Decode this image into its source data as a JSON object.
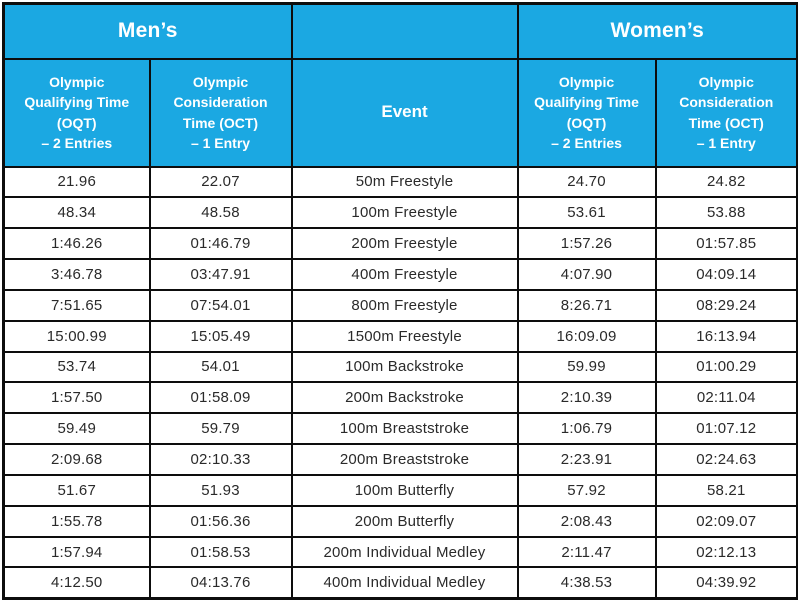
{
  "colors": {
    "header_blue": "#1BA8E2",
    "border": "#0d0d0d",
    "header_text": "#FFFFFF",
    "cell_text": "#2a2a2a"
  },
  "table": {
    "group_headers": {
      "mens": "Men’s",
      "womens": "Women’s"
    },
    "sub_headers": {
      "oqt_lines": "Olympic\nQualifying Time\n(OQT)\n– 2 Entries",
      "oct_lines": "Olympic\nConsideration\nTime (OCT)\n– 1 Entry",
      "event": "Event"
    },
    "rows": [
      {
        "event": "50m Freestyle",
        "m_oqt": "21.96",
        "m_oct": "22.07",
        "w_oqt": "24.70",
        "w_oct": "24.82"
      },
      {
        "event": "100m Freestyle",
        "m_oqt": "48.34",
        "m_oct": "48.58",
        "w_oqt": "53.61",
        "w_oct": "53.88"
      },
      {
        "event": "200m Freestyle",
        "m_oqt": "1:46.26",
        "m_oct": "01:46.79",
        "w_oqt": "1:57.26",
        "w_oct": "01:57.85"
      },
      {
        "event": "400m Freestyle",
        "m_oqt": "3:46.78",
        "m_oct": "03:47.91",
        "w_oqt": "4:07.90",
        "w_oct": "04:09.14"
      },
      {
        "event": "800m Freestyle",
        "m_oqt": "7:51.65",
        "m_oct": "07:54.01",
        "w_oqt": "8:26.71",
        "w_oct": "08:29.24"
      },
      {
        "event": "1500m Freestyle",
        "m_oqt": "15:00.99",
        "m_oct": "15:05.49",
        "w_oqt": "16:09.09",
        "w_oct": "16:13.94"
      },
      {
        "event": "100m Backstroke",
        "m_oqt": "53.74",
        "m_oct": "54.01",
        "w_oqt": "59.99",
        "w_oct": "01:00.29"
      },
      {
        "event": "200m Backstroke",
        "m_oqt": "1:57.50",
        "m_oct": "01:58.09",
        "w_oqt": "2:10.39",
        "w_oct": "02:11.04"
      },
      {
        "event": "100m Breaststroke",
        "m_oqt": "59.49",
        "m_oct": "59.79",
        "w_oqt": "1:06.79",
        "w_oct": "01:07.12"
      },
      {
        "event": "200m Breaststroke",
        "m_oqt": "2:09.68",
        "m_oct": "02:10.33",
        "w_oqt": "2:23.91",
        "w_oct": "02:24.63"
      },
      {
        "event": "100m Butterfly",
        "m_oqt": "51.67",
        "m_oct": "51.93",
        "w_oqt": "57.92",
        "w_oct": "58.21"
      },
      {
        "event": "200m Butterfly",
        "m_oqt": "1:55.78",
        "m_oct": "01:56.36",
        "w_oqt": "2:08.43",
        "w_oct": "02:09.07"
      },
      {
        "event": "200m Individual Medley",
        "m_oqt": "1:57.94",
        "m_oct": "01:58.53",
        "w_oqt": "2:11.47",
        "w_oct": "02:12.13"
      },
      {
        "event": "400m Individual Medley",
        "m_oqt": "4:12.50",
        "m_oct": "04:13.76",
        "w_oqt": "4:38.53",
        "w_oct": "04:39.92"
      }
    ]
  },
  "chart_data": {
    "type": "table",
    "title": "Olympic swimming qualifying standards",
    "column_groups": [
      "Men’s",
      "",
      "Women’s"
    ],
    "columns": [
      "Olympic Qualifying Time (OQT) – 2 Entries (Men)",
      "Olympic Consideration Time (OCT) – 1 Entry (Men)",
      "Event",
      "Olympic Qualifying Time (OQT) – 2 Entries (Women)",
      "Olympic Consideration Time (OCT) – 1 Entry (Women)"
    ],
    "rows": [
      [
        "21.96",
        "22.07",
        "50m Freestyle",
        "24.70",
        "24.82"
      ],
      [
        "48.34",
        "48.58",
        "100m Freestyle",
        "53.61",
        "53.88"
      ],
      [
        "1:46.26",
        "01:46.79",
        "200m Freestyle",
        "1:57.26",
        "01:57.85"
      ],
      [
        "3:46.78",
        "03:47.91",
        "400m Freestyle",
        "4:07.90",
        "04:09.14"
      ],
      [
        "7:51.65",
        "07:54.01",
        "800m Freestyle",
        "8:26.71",
        "08:29.24"
      ],
      [
        "15:00.99",
        "15:05.49",
        "1500m Freestyle",
        "16:09.09",
        "16:13.94"
      ],
      [
        "53.74",
        "54.01",
        "100m Backstroke",
        "59.99",
        "01:00.29"
      ],
      [
        "1:57.50",
        "01:58.09",
        "200m Backstroke",
        "2:10.39",
        "02:11.04"
      ],
      [
        "59.49",
        "59.79",
        "100m Breaststroke",
        "1:06.79",
        "01:07.12"
      ],
      [
        "2:09.68",
        "02:10.33",
        "200m Breaststroke",
        "2:23.91",
        "02:24.63"
      ],
      [
        "51.67",
        "51.93",
        "100m Butterfly",
        "57.92",
        "58.21"
      ],
      [
        "1:55.78",
        "01:56.36",
        "200m Butterfly",
        "2:08.43",
        "02:09.07"
      ],
      [
        "1:57.94",
        "01:58.53",
        "200m Individual Medley",
        "2:11.47",
        "02:12.13"
      ],
      [
        "4:12.50",
        "04:13.76",
        "400m Individual Medley",
        "4:38.53",
        "04:39.92"
      ]
    ]
  }
}
